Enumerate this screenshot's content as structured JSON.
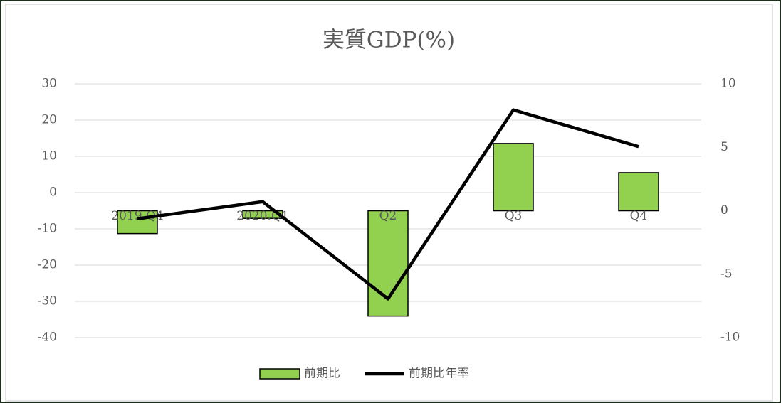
{
  "chart_data": {
    "type": "combo",
    "title": "実質GDP(%)",
    "categories": [
      "2019.Q4",
      "2020.Q1",
      "Q2",
      "Q3",
      "Q4"
    ],
    "series": [
      {
        "name": "前期比",
        "type": "bar",
        "axis": "y2",
        "color": "#92d050",
        "values": [
          -1.8,
          -0.6,
          -8.3,
          5.3,
          3.0
        ]
      },
      {
        "name": "前期比年率",
        "type": "line",
        "color": "#000000",
        "values": [
          -7.2,
          -2.5,
          -29.3,
          22.8,
          12.7
        ]
      }
    ],
    "ylim": [
      -40,
      30
    ],
    "yticks": [
      -40,
      -30,
      -20,
      -10,
      0,
      10,
      20,
      30
    ],
    "y2lim": [
      -10,
      10
    ],
    "y2ticks": [
      -10,
      -5,
      0,
      5,
      10
    ],
    "grid": true,
    "legend": "bottom"
  }
}
